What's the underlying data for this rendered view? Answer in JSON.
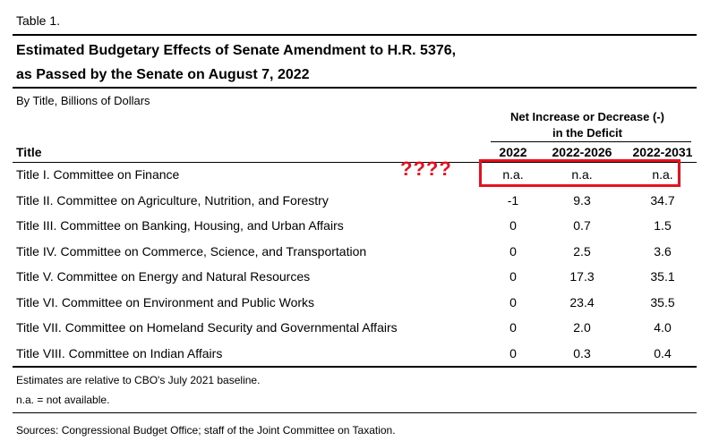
{
  "table": {
    "label": "Table 1.",
    "title_line1": "Estimated Budgetary Effects of Senate Amendment to H.R. 5376,",
    "title_line2": "as Passed by the Senate on August 7, 2022",
    "subtitle": "By Title, Billions of Dollars",
    "spanner_line1": "Net Increase or Decrease (-)",
    "spanner_line2": "in the Deficit",
    "col_title": "Title",
    "columns": [
      "2022",
      "2022-2026",
      "2022-2031"
    ],
    "rows": [
      {
        "label": "Title I. Committee on Finance",
        "values": [
          "n.a.",
          "n.a.",
          "n.a."
        ]
      },
      {
        "label": "Title II. Committee on Agriculture, Nutrition, and Forestry",
        "values": [
          "-1",
          "9.3",
          "34.7"
        ]
      },
      {
        "label": "Title III. Committee on Banking, Housing, and Urban Affairs",
        "values": [
          "0",
          "0.7",
          "1.5"
        ]
      },
      {
        "label": "Title IV. Committee on Commerce, Science, and Transportation",
        "values": [
          "0",
          "2.5",
          "3.6"
        ]
      },
      {
        "label": "Title V. Committee on Energy and Natural Resources",
        "values": [
          "0",
          "17.3",
          "35.1"
        ]
      },
      {
        "label": "Title VI. Committee on Environment and Public Works",
        "values": [
          "0",
          "23.4",
          "35.5"
        ]
      },
      {
        "label": "Title VII. Committee on Homeland Security and Governmental Affairs",
        "values": [
          "0",
          "2.0",
          "4.0"
        ]
      },
      {
        "label": "Title VIII. Committee on Indian Affairs",
        "values": [
          "0",
          "0.3",
          "0.4"
        ]
      }
    ],
    "note1": "Estimates are relative to CBO's July 2021 baseline.",
    "note2": "n.a. = not available.",
    "sources": "Sources: Congressional Budget Office; staff of the Joint Committee on Taxation."
  },
  "annotation": {
    "question_marks": "????",
    "color": "#e8101f"
  }
}
